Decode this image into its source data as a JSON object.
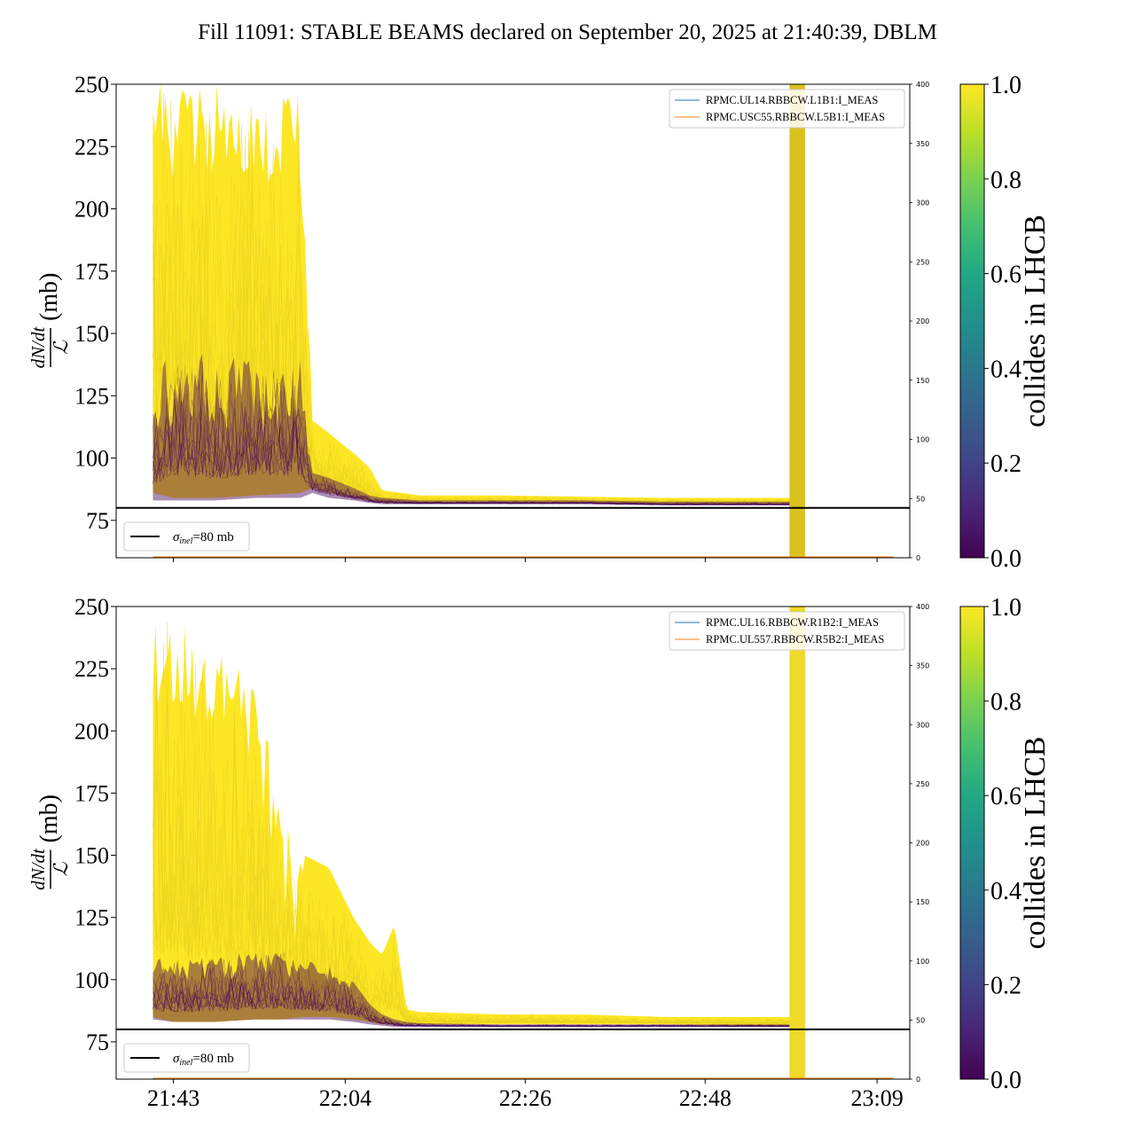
{
  "figure": {
    "title": "Fill 11091: STABLE BEAMS declared on September 20, 2025 at 21:40:39, DBLM"
  },
  "colors": {
    "yellow": "#fde725",
    "purple": "#440154",
    "blue_line": "#1f77b4",
    "orange_line": "#ff7f0e",
    "reference_line": "#000000"
  },
  "chart_data": [
    {
      "type": "line",
      "panel": "top",
      "ylabel_fraction": "dN/dt over L",
      "ylabel_unit": "(mb)",
      "ylim": [
        60,
        250
      ],
      "yticks": [
        75,
        100,
        125,
        150,
        175,
        200,
        225,
        250
      ],
      "xticks": [
        "21:43",
        "22:04",
        "22:26",
        "22:48",
        "23:09"
      ],
      "xtick_minutes": [
        0,
        21,
        43,
        65,
        86
      ],
      "xlim_minutes": [
        -7,
        90
      ],
      "y2lim": [
        0,
        400
      ],
      "y2ticks": [
        0,
        50,
        100,
        150,
        200,
        250,
        300,
        350,
        400
      ],
      "legend_entries": [
        {
          "label": "RPMC.UL14.RBBCW.L1B1:I_MEAS",
          "color": "#1f77b4"
        },
        {
          "label": "RPMC.USC55.RBBCW.L5B1:I_MEAS",
          "color": "#ff7f0e"
        }
      ],
      "reference": {
        "value": 80,
        "label_prefix": "σ",
        "label_sub": "inel",
        "label_suffix": "=80 mb"
      },
      "envelope_minutes": [
        -2.5,
        0,
        5,
        10,
        15.5,
        17,
        19,
        22,
        24,
        25.5,
        28,
        30,
        40,
        50,
        60,
        70,
        75.5
      ],
      "yellow_upper": [
        250,
        250,
        250,
        250,
        250,
        115,
        110,
        102,
        96,
        87,
        86,
        85,
        85,
        84.5,
        84,
        84,
        84
      ],
      "yellow_lower": [
        86,
        84,
        84,
        85,
        86,
        88,
        86,
        84,
        83,
        82,
        82,
        82,
        82,
        82,
        81.5,
        81.5,
        81.5
      ],
      "purple_upper": [
        125,
        150,
        140,
        145,
        140,
        94,
        92,
        88,
        85,
        84,
        83.5,
        83,
        83,
        83,
        82.5,
        82.5,
        82.5
      ],
      "purple_lower": [
        83,
        83,
        83,
        84,
        84,
        86,
        84,
        83,
        82,
        81.5,
        81.5,
        81.5,
        81.5,
        81.5,
        81,
        81,
        81
      ],
      "bands_minutes": [
        [
          75.3,
          77.2
        ]
      ]
    },
    {
      "type": "line",
      "panel": "bottom",
      "ylabel_fraction": "dN/dt over L",
      "ylabel_unit": "(mb)",
      "ylim": [
        60,
        250
      ],
      "yticks": [
        75,
        100,
        125,
        150,
        175,
        200,
        225,
        250
      ],
      "xticks": [
        "21:43",
        "22:04",
        "22:26",
        "22:48",
        "23:09"
      ],
      "xtick_minutes": [
        0,
        21,
        43,
        65,
        86
      ],
      "xlim_minutes": [
        -7,
        90
      ],
      "y2lim": [
        0,
        400
      ],
      "y2ticks": [
        0,
        50,
        100,
        150,
        200,
        250,
        300,
        350,
        400
      ],
      "legend_entries": [
        {
          "label": "RPMC.UL16.RBBCW.R1B2:I_MEAS",
          "color": "#1f77b4"
        },
        {
          "label": "RPMC.UL557.RBBCW.R5B2:I_MEAS",
          "color": "#ff7f0e"
        }
      ],
      "reference": {
        "value": 80,
        "label_prefix": "σ",
        "label_sub": "inel",
        "label_suffix": "=80 mb"
      },
      "envelope_minutes": [
        -2.5,
        0,
        5,
        10,
        13,
        16,
        19,
        22,
        24,
        25.5,
        27,
        28.5,
        30,
        40,
        50,
        60,
        70,
        75.5
      ],
      "yellow_upper": [
        250,
        250,
        240,
        225,
        170,
        150,
        145,
        125,
        115,
        110,
        122,
        88,
        87,
        86,
        86,
        85,
        85,
        85
      ],
      "yellow_lower": [
        85,
        83,
        83,
        84,
        84,
        85,
        85,
        84,
        83,
        82,
        82,
        82,
        82,
        82,
        82,
        82,
        81.5,
        81.5
      ],
      "purple_upper": [
        108,
        110,
        110,
        112,
        112,
        108,
        106,
        99,
        90,
        86,
        84,
        83,
        82.5,
        82,
        82,
        82,
        82,
        82
      ],
      "purple_lower": [
        84,
        83,
        83,
        84,
        84,
        84,
        84,
        83,
        82,
        81.5,
        81,
        81,
        81,
        81,
        81,
        81,
        81,
        81
      ],
      "bands_minutes": [
        [
          75.3,
          77.2
        ]
      ]
    }
  ],
  "colorbars": [
    {
      "label": "collides in LHCB",
      "ticks": [
        "0.0",
        "0.2",
        "0.4",
        "0.6",
        "0.8",
        "1.0"
      ],
      "range": [
        0,
        1
      ]
    },
    {
      "label": "collides in LHCB",
      "ticks": [
        "0.0",
        "0.2",
        "0.4",
        "0.6",
        "0.8",
        "1.0"
      ],
      "range": [
        0,
        1
      ]
    }
  ]
}
